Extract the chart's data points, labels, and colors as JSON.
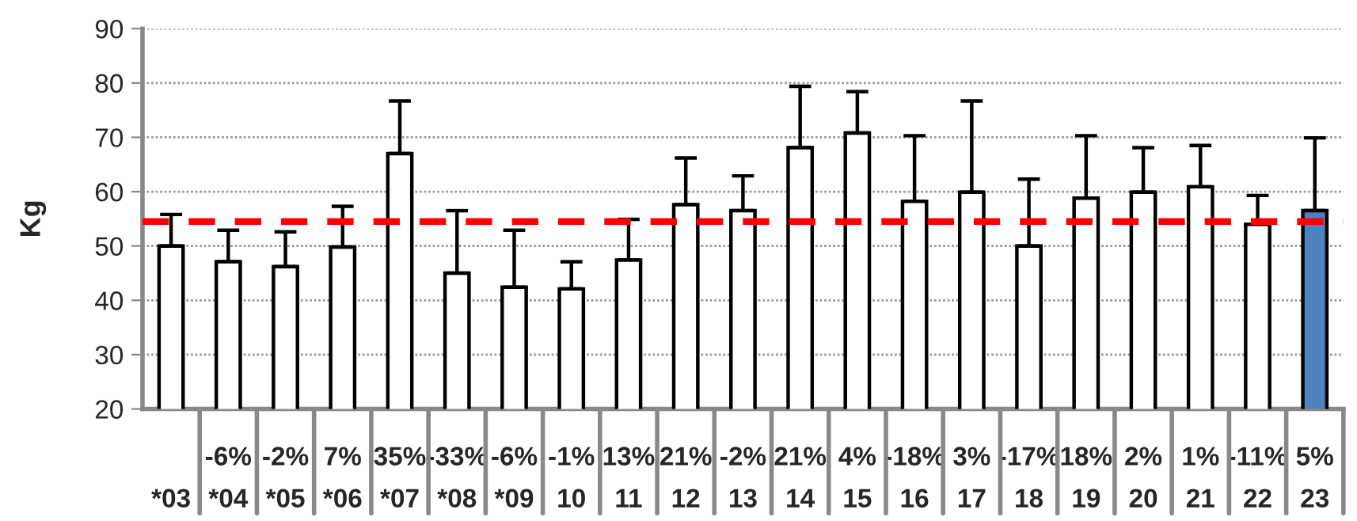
{
  "chart_data": {
    "type": "bar",
    "ylabel": "Kg",
    "categories": [
      "*03",
      "*04",
      "*05",
      "*06",
      "*07",
      "*08",
      "*09",
      "10",
      "11",
      "12",
      "13",
      "14",
      "15",
      "16",
      "17",
      "18",
      "19",
      "20",
      "21",
      "22",
      "23"
    ],
    "values": [
      50.0,
      47.1,
      46.2,
      49.8,
      67.0,
      45.0,
      42.4,
      42.1,
      47.4,
      57.6,
      56.5,
      68.1,
      70.8,
      58.2,
      59.9,
      50.0,
      58.8,
      59.9,
      60.9,
      54.0,
      56.5
    ],
    "errors": [
      [
        50.0,
        55.8
      ],
      [
        47.1,
        52.9
      ],
      [
        46.2,
        52.6
      ],
      [
        49.8,
        57.3
      ],
      [
        67.0,
        76.7
      ],
      [
        45.0,
        56.5
      ],
      [
        42.4,
        52.9
      ],
      [
        42.1,
        47.1
      ],
      [
        47.4,
        54.9
      ],
      [
        57.6,
        66.2
      ],
      [
        56.5,
        62.9
      ],
      [
        68.1,
        79.4
      ],
      [
        70.8,
        78.4
      ],
      [
        58.2,
        70.3
      ],
      [
        59.9,
        76.7
      ],
      [
        50.0,
        62.3
      ],
      [
        58.8,
        70.3
      ],
      [
        59.9,
        68.1
      ],
      [
        60.9,
        68.5
      ],
      [
        54.0,
        59.3
      ],
      [
        56.5,
        69.9
      ]
    ],
    "colors": [
      "#ffffff",
      "#ffffff",
      "#ffffff",
      "#ffffff",
      "#ffffff",
      "#ffffff",
      "#ffffff",
      "#ffffff",
      "#ffffff",
      "#ffffff",
      "#ffffff",
      "#ffffff",
      "#ffffff",
      "#ffffff",
      "#ffffff",
      "#ffffff",
      "#ffffff",
      "#ffffff",
      "#ffffff",
      "#ffffff",
      "#4f81bd"
    ],
    "ylim": [
      20,
      90
    ],
    "yticks": [
      20,
      30,
      40,
      50,
      60,
      70,
      80,
      90
    ],
    "grid": "y",
    "ref_lines": [
      {
        "axis": "y",
        "value": 54.5,
        "color": "#ff0000",
        "line_style": "dashed"
      }
    ],
    "annotations": [
      "-6%",
      "-2%",
      "7%",
      "35%",
      "-33%",
      "-6%",
      "-1%",
      "13%",
      "21%",
      "-2%",
      "21%",
      "4%",
      "-18%",
      "3%",
      "-17%",
      "18%",
      "2%",
      "1%",
      "-11%",
      "5%"
    ]
  }
}
